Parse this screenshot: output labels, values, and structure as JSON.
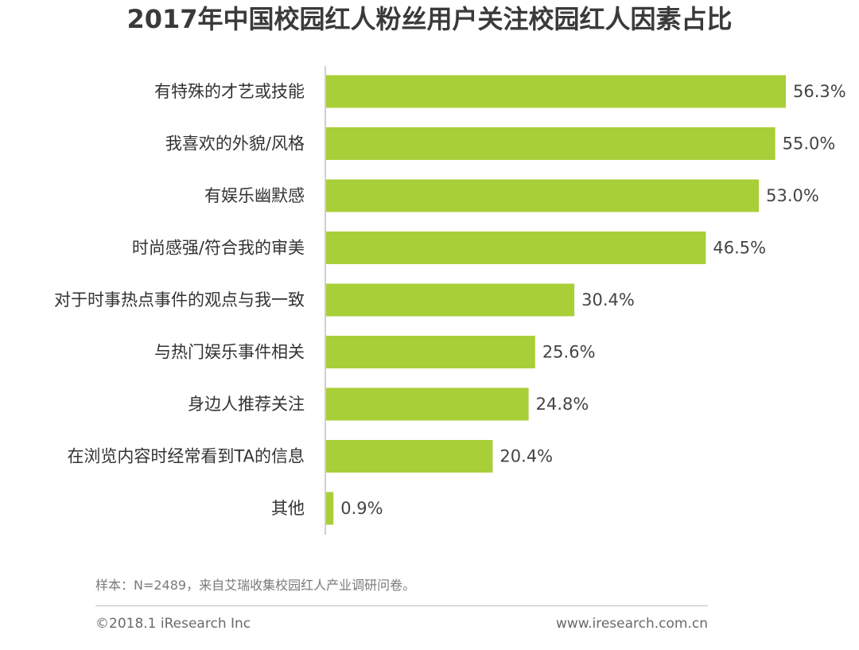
{
  "chart_data": {
    "type": "bar",
    "orientation": "horizontal",
    "title": "2017年中国校园红人粉丝用户关注校园红人因素占比",
    "categories": [
      "有特殊的才艺或技能",
      "我喜欢的外貌/风格",
      "有娱乐幽默感",
      "时尚感强/符合我的审美",
      "对于时事热点事件的观点与我一致",
      "与热门娱乐事件相关",
      "身边人推荐关注",
      "在浏览内容时经常看到TA的信息",
      "其他"
    ],
    "values": [
      56.3,
      55.0,
      53.0,
      46.5,
      30.4,
      25.6,
      24.8,
      20.4,
      0.9
    ],
    "value_labels": [
      "56.3%",
      "55.0%",
      "53.0%",
      "46.5%",
      "30.4%",
      "25.6%",
      "24.8%",
      "20.4%",
      "0.9%"
    ],
    "unit": "%",
    "xlim": [
      0,
      60
    ],
    "xlabel": "",
    "ylabel": "",
    "grid": false,
    "bar_color": "#a8cf38",
    "axis_color": "#bfbfbf"
  },
  "note": "样本：N=2489，来自艾瑞收集校园红人产业调研问卷。",
  "footer": {
    "copyright": "©2018.1 iResearch Inc",
    "website": "www.iresearch.com.cn"
  }
}
